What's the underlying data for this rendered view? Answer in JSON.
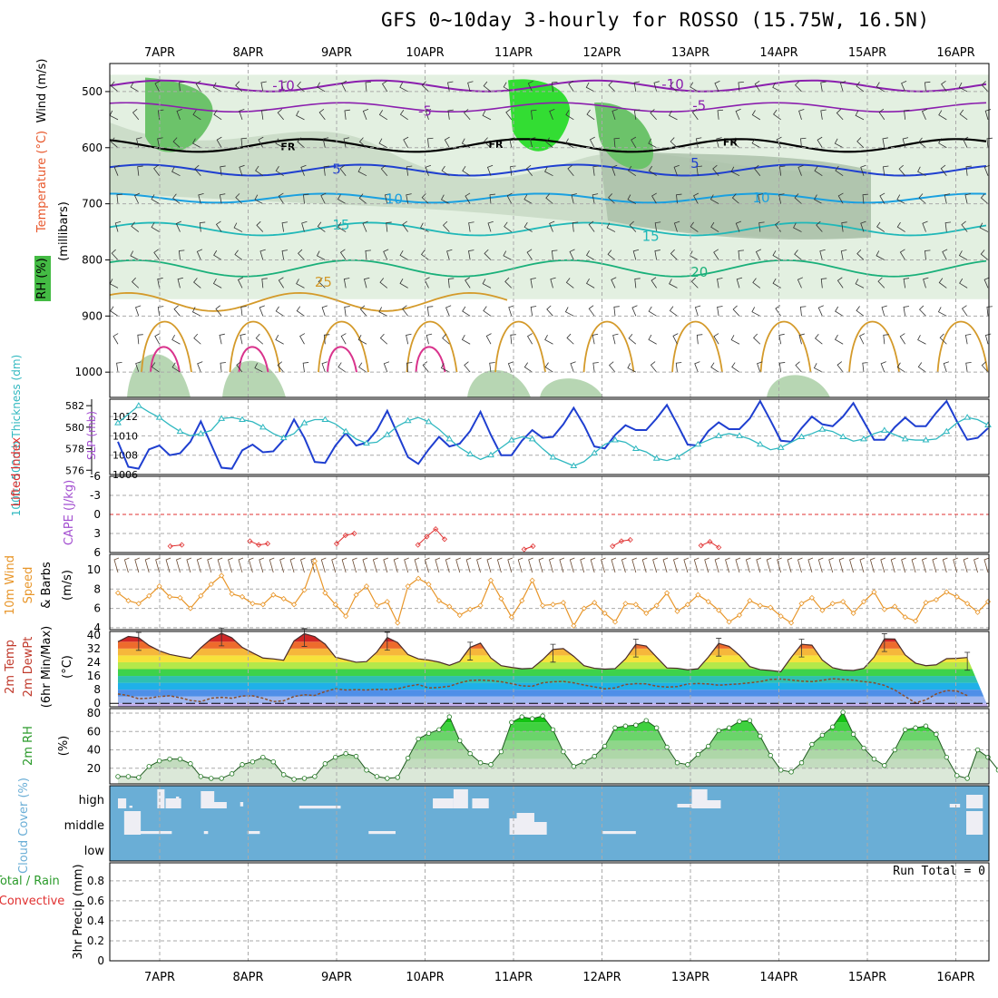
{
  "title": "GFS 0~10day 3-hourly for ROSSO (15.75W, 16.5N)",
  "colors": {
    "grid": "#aaaaaa",
    "slp": "#1f3fd0",
    "thickness": "#30b8c0",
    "li": "#e03030",
    "wind10": "#e8962a",
    "cloud": "#6aaed6",
    "rh": "#2a9a2a",
    "temp_line": "#c0392b"
  },
  "chart_data": [
    {
      "id": "upper",
      "type": "contour",
      "dates": [
        "7APR",
        "8APR",
        "9APR",
        "10APR",
        "11APR",
        "12APR",
        "13APR",
        "14APR",
        "15APR",
        "16APR"
      ],
      "yticks": [
        500,
        600,
        700,
        800,
        900,
        1000
      ],
      "ylabel_wind": "Wind (m/s)",
      "ylabel_temp": "Temperature (°C)",
      "ylabel_rh": "RH (%)",
      "ylabel_pres": "(millibars)",
      "ylim": [
        450,
        1045
      ],
      "temp_labels": [
        {
          "text": "-10",
          "x": 1.8,
          "p": 490,
          "color": "#8b1fae"
        },
        {
          "text": "-10",
          "x": 6.2,
          "p": 487,
          "color": "#8b1fae"
        },
        {
          "text": "-5",
          "x": 3.4,
          "p": 535,
          "color": "#8b1fae"
        },
        {
          "text": "-5",
          "x": 6.5,
          "p": 525,
          "color": "#8b1fae"
        },
        {
          "text": "FR",
          "x": 1.85,
          "p": 596,
          "color": "#000000"
        },
        {
          "text": "FR",
          "x": 4.2,
          "p": 592,
          "color": "#000000"
        },
        {
          "text": "FR",
          "x": 6.85,
          "p": 588,
          "color": "#000000"
        },
        {
          "text": "5",
          "x": 2.4,
          "p": 638,
          "color": "#1f3fd0"
        },
        {
          "text": "5",
          "x": 6.45,
          "p": 628,
          "color": "#1f3fd0"
        },
        {
          "text": "10",
          "x": 3.05,
          "p": 692,
          "color": "#1aa0e0"
        },
        {
          "text": "10",
          "x": 7.2,
          "p": 689,
          "color": "#1aa0e0"
        },
        {
          "text": "15",
          "x": 2.45,
          "p": 738,
          "color": "#20b8b8"
        },
        {
          "text": "15",
          "x": 5.95,
          "p": 758,
          "color": "#20b8b8"
        },
        {
          "text": "20",
          "x": 6.5,
          "p": 822,
          "color": "#1ab07a"
        },
        {
          "text": "25",
          "x": 2.25,
          "p": 840,
          "color": "#d49a2a"
        }
      ]
    },
    {
      "id": "slp",
      "type": "line",
      "ylabel_left": "1000~500mb Thickness (dm)",
      "ylabel_right": "SLP (mb)",
      "left_ticks": [
        576,
        578,
        580,
        582
      ],
      "right_ticks": [
        1006,
        1008,
        1010,
        1012
      ],
      "left_lim": [
        575.6,
        582.6
      ],
      "right_lim": [
        1006,
        1013.8
      ],
      "series": [
        {
          "name": "SLP",
          "axis": "right",
          "values": [
            1009.4,
            1006.8,
            1006.6,
            1008.6,
            1009.0,
            1008.0,
            1008.2,
            1009.4,
            1011.5,
            1009.1,
            1006.7,
            1006.6,
            1008.5,
            1009.1,
            1008.3,
            1008.4,
            1009.6,
            1011.7,
            1009.8,
            1007.3,
            1007.2,
            1009.0,
            1010.3,
            1009.0,
            1009.3,
            1010.6,
            1012.6,
            1010.2,
            1007.8,
            1007.1,
            1008.6,
            1009.9,
            1008.9,
            1009.2,
            1010.5,
            1012.5,
            1010.1,
            1008.0,
            1008.0,
            1009.5,
            1010.6,
            1009.8,
            1009.9,
            1011.2,
            1012.9,
            1011.1,
            1008.9,
            1008.7,
            1010.1,
            1011.1,
            1010.6,
            1010.6,
            1011.8,
            1013.2,
            1011.2,
            1009.1,
            1009.0,
            1010.5,
            1011.4,
            1010.7,
            1010.7,
            1011.8,
            1013.6,
            1011.6,
            1009.5,
            1009.4,
            1010.8,
            1012.0,
            1011.2,
            1011.0,
            1012.0,
            1013.4,
            1011.5,
            1009.6,
            1009.6,
            1010.9,
            1011.9,
            1011.0,
            1011.0,
            1012.4,
            1013.6,
            1011.5,
            1009.6,
            1009.8,
            1010.8
          ]
        },
        {
          "name": "Thickness",
          "axis": "left",
          "values": [
            580.4,
            581.2,
            582.0,
            581.4,
            580.9,
            580.2,
            579.6,
            579.2,
            579.4,
            579.7,
            580.8,
            580.9,
            580.7,
            580.5,
            580.0,
            579.4,
            579.0,
            579.4,
            580.4,
            580.7,
            580.7,
            580.3,
            579.6,
            578.9,
            578.5,
            578.6,
            579.3,
            580.1,
            580.6,
            580.9,
            580.5,
            579.8,
            578.9,
            578.1,
            577.5,
            577.0,
            577.4,
            578.1,
            578.8,
            579.1,
            578.9,
            578.0,
            577.2,
            576.8,
            576.4,
            576.8,
            577.6,
            578.4,
            578.8,
            578.6,
            578.0,
            577.7,
            577.1,
            576.9,
            577.2,
            577.8,
            578.4,
            578.8,
            579.2,
            579.4,
            579.2,
            578.9,
            578.4,
            577.9,
            578.1,
            578.6,
            579.1,
            579.4,
            579.8,
            579.6,
            579.1,
            578.7,
            578.9,
            579.4,
            579.7,
            579.3,
            578.9,
            578.8,
            578.8,
            578.9,
            579.6,
            580.4,
            580.9,
            580.7,
            580.2
          ]
        }
      ]
    },
    {
      "id": "cape",
      "type": "line",
      "ylabel_left": "Lifted Index",
      "ylabel_right": "CAPE (J/kg)",
      "left_ticks": [
        -6,
        -3,
        0,
        3,
        6
      ],
      "left_labels": [
        "-6",
        "-3",
        "0",
        "3",
        "6"
      ],
      "left_lim": [
        -6,
        6
      ],
      "series": [
        {
          "name": "Lifted Index",
          "segments": [
            [
              [
                0.12,
                5.0
              ],
              [
                0.25,
                4.8
              ]
            ],
            [
              [
                1.02,
                4.2
              ],
              [
                1.12,
                4.8
              ],
              [
                1.22,
                4.6
              ]
            ],
            [
              [
                2.0,
                4.6
              ],
              [
                2.1,
                3.3
              ],
              [
                2.2,
                3.0
              ]
            ],
            [
              [
                2.92,
                4.8
              ],
              [
                3.02,
                3.5
              ],
              [
                3.12,
                2.3
              ],
              [
                3.22,
                3.9
              ]
            ],
            [
              [
                4.12,
                5.5
              ],
              [
                4.22,
                5.0
              ]
            ],
            [
              [
                5.12,
                5.0
              ],
              [
                5.22,
                4.2
              ],
              [
                5.32,
                4.0
              ]
            ],
            [
              [
                6.12,
                4.9
              ],
              [
                6.22,
                4.3
              ],
              [
                6.32,
                5.2
              ]
            ]
          ]
        }
      ]
    },
    {
      "id": "wind10",
      "type": "line",
      "ylabel": "10m Wind Speed & Barbs (m/s)",
      "ticks": [
        4,
        6,
        8,
        10
      ],
      "lim": [
        3.8,
        11.6
      ],
      "values": [
        7.6,
        6.8,
        6.5,
        7.3,
        8.3,
        7.2,
        7.1,
        6.0,
        7.3,
        8.5,
        9.4,
        7.5,
        7.2,
        6.5,
        6.4,
        7.4,
        7.0,
        6.4,
        7.9,
        10.9,
        7.6,
        6.4,
        5.2,
        7.4,
        8.3,
        6.3,
        6.7,
        4.5,
        8.3,
        9.1,
        8.5,
        6.8,
        6.2,
        5.3,
        5.9,
        6.3,
        8.9,
        7.0,
        5.1,
        6.8,
        8.9,
        6.3,
        6.4,
        6.6,
        4.2,
        6.0,
        6.6,
        5.5,
        4.6,
        6.5,
        6.4,
        5.5,
        6.3,
        7.6,
        5.7,
        6.4,
        7.4,
        6.7,
        5.8,
        4.6,
        5.3,
        6.8,
        6.3,
        6.1,
        5.2,
        4.5,
        6.5,
        7.1,
        5.8,
        6.5,
        6.7,
        5.5,
        6.7,
        7.7,
        5.9,
        6.2,
        5.1,
        4.7,
        6.6,
        6.9,
        7.7,
        7.2,
        6.5,
        5.6,
        6.7
      ]
    },
    {
      "id": "temp2m",
      "type": "area",
      "ylabel": "2m Temp 2m DewPt (6hr Min/Max) (°C)",
      "ticks": [
        0,
        8,
        16,
        24,
        32,
        40
      ],
      "lim": [
        -2,
        42
      ],
      "temp": [
        36.0,
        39.1,
        38.4,
        33.8,
        30.7,
        28.6,
        27.4,
        26.3,
        32.5,
        37.7,
        41.0,
        38.3,
        32.7,
        29.5,
        26.5,
        26.0,
        25.2,
        36.5,
        40.7,
        39.0,
        34.6,
        27.0,
        25.5,
        24.0,
        24.4,
        30.0,
        38.5,
        35.5,
        28.5,
        26.0,
        25.3,
        24.1,
        22.2,
        24.5,
        32.7,
        35.2,
        26.5,
        22.0,
        21.0,
        20.2,
        20.5,
        25.5,
        31.5,
        32.0,
        27.5,
        22.0,
        20.5,
        20.0,
        20.3,
        26.0,
        34.5,
        33.5,
        27.0,
        20.7,
        20.5,
        19.6,
        20.2,
        27.0,
        35.0,
        33.3,
        28.2,
        21.5,
        19.7,
        19.2,
        18.5,
        26.8,
        34.5,
        34.0,
        25.3,
        20.8,
        19.5,
        19.2,
        20.4,
        27.0,
        37.7,
        37.6,
        28.3,
        23.5,
        22.0,
        22.5,
        26.1,
        26.3,
        26.8
      ],
      "dew": [
        5.5,
        4.5,
        2.7,
        3.0,
        4.0,
        4.4,
        3.3,
        1.7,
        1.0,
        3.0,
        3.5,
        3.0,
        4.3,
        4.4,
        3.0,
        1.0,
        1.5,
        4.0,
        5.0,
        4.6,
        6.9,
        8.5,
        7.8,
        8.0,
        7.8,
        8.2,
        8.0,
        8.5,
        10.0,
        11.0,
        9.0,
        9.3,
        10.0,
        12.0,
        13.4,
        13.6,
        13.3,
        12.6,
        11.5,
        10.2,
        10.0,
        12.0,
        12.6,
        12.8,
        12.0,
        10.7,
        9.6,
        8.5,
        9.0,
        11.0,
        11.5,
        11.4,
        10.0,
        9.5,
        9.8,
        11.3,
        11.6,
        11.3,
        10.6,
        11.0,
        11.4,
        12.0,
        12.7,
        14.0,
        14.2,
        13.6,
        13.0,
        12.7,
        13.5,
        14.4,
        14.0,
        13.5,
        12.7,
        12.0,
        10.5,
        7.8,
        4.0,
        0.3,
        2.0,
        5.5,
        7.5,
        7.2,
        4.5
      ]
    },
    {
      "id": "rh2m",
      "type": "area",
      "ylabel": "2m RH (%)",
      "ticks": [
        20,
        40,
        60,
        80
      ],
      "lim": [
        3,
        85
      ],
      "values": [
        11,
        11,
        10,
        22,
        28,
        30,
        30,
        25,
        11,
        9,
        9,
        14,
        24,
        27,
        32,
        27,
        13,
        8,
        9,
        11,
        25,
        32,
        36,
        33,
        18,
        11,
        9,
        10,
        31,
        52,
        58,
        62,
        76,
        50,
        36,
        26,
        24,
        38,
        70,
        76,
        74,
        77,
        62,
        38,
        22,
        27,
        33,
        44,
        64,
        66,
        67,
        72,
        64,
        43,
        26,
        24,
        35,
        44,
        61,
        64,
        71,
        72,
        55,
        34,
        18,
        16,
        26,
        46,
        56,
        65,
        81,
        57,
        42,
        30,
        23,
        40,
        62,
        64,
        66,
        57,
        32,
        12,
        9,
        40,
        32,
        18,
        18
      ]
    },
    {
      "id": "cloud",
      "type": "heatmap",
      "ylabel": "Cloud Cover (%)",
      "levels": [
        "high",
        "middle",
        "low"
      ]
    },
    {
      "id": "precip",
      "type": "bar",
      "ylabel_left": "Total / Rain",
      "ylabel_left2": "Convective",
      "ylabel": "3hr Precip (mm)",
      "ticks": [
        0,
        0.2,
        0.4,
        0.6,
        0.8
      ],
      "tick_labels": [
        "0",
        "0.2",
        "0.4",
        "0.6",
        "0.8"
      ],
      "lim": [
        0,
        0.98
      ],
      "run_total": "Run Total = 0",
      "values": []
    }
  ]
}
